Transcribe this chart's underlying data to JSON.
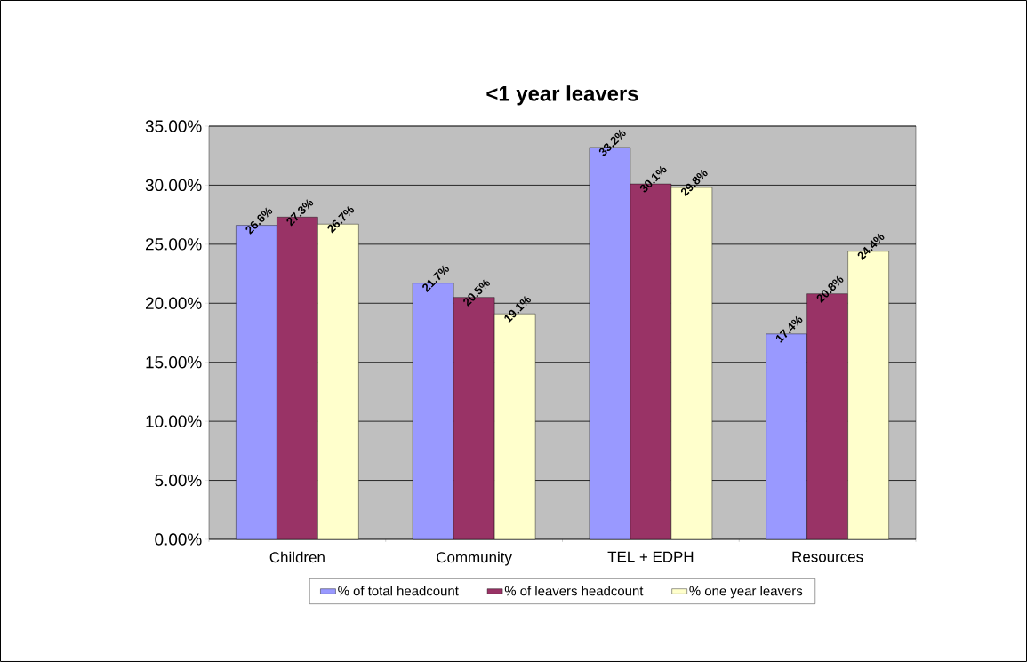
{
  "chart_data": {
    "type": "bar",
    "title": "<1 year leavers",
    "categories": [
      "Children",
      "Community",
      "TEL + EDPH",
      "Resources"
    ],
    "series": [
      {
        "name": "% of total headcount",
        "color": "#9999ff",
        "values": [
          26.6,
          21.7,
          33.2,
          17.4
        ],
        "value_labels": [
          "26.6%",
          "21.7%",
          "33.2%",
          "17.4%"
        ]
      },
      {
        "name": "% of leavers headcount",
        "color": "#993366",
        "values": [
          27.3,
          20.5,
          30.1,
          20.8
        ],
        "value_labels": [
          "27.3%",
          "20.5%",
          "30.1%",
          "20.8%"
        ]
      },
      {
        "name": "% one year leavers",
        "color": "#ffffcc",
        "values": [
          26.7,
          19.1,
          29.8,
          24.4
        ],
        "value_labels": [
          "26.7%",
          "19.1%",
          "29.8%",
          "24.4%"
        ]
      }
    ],
    "ylim": [
      0,
      35
    ],
    "yticks": [
      {
        "value": 0,
        "label": "0.00%"
      },
      {
        "value": 5,
        "label": "5.00%"
      },
      {
        "value": 10,
        "label": "10.00%"
      },
      {
        "value": 15,
        "label": "15.00%"
      },
      {
        "value": 20,
        "label": "20.00%"
      },
      {
        "value": 25,
        "label": "25.00%"
      },
      {
        "value": 30,
        "label": "30.00%"
      },
      {
        "value": 35,
        "label": "35.00%"
      }
    ],
    "grid": "y",
    "legend": "bottom"
  }
}
